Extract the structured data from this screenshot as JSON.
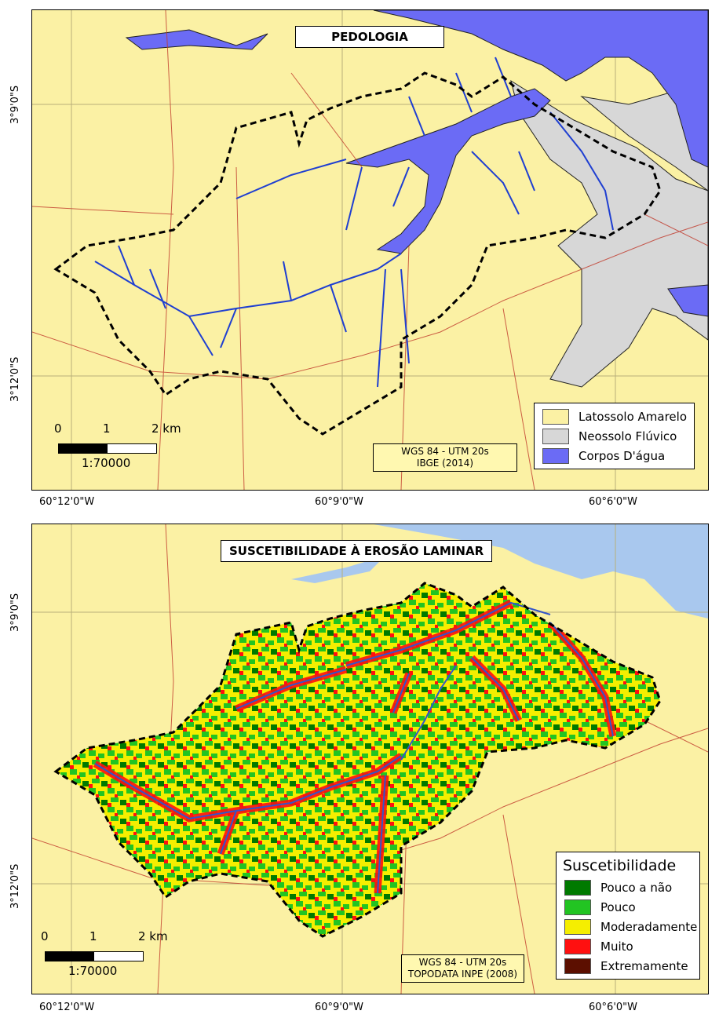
{
  "maps": [
    {
      "title": "PEDOLOGIA",
      "credit_line1": "WGS 84 - UTM 20s",
      "credit_line2": "IBGE (2014)",
      "scale": {
        "labels": [
          "0",
          "1",
          "2 km"
        ],
        "ratio": "1:70000"
      },
      "legend": {
        "title": "",
        "items": [
          {
            "label": "Latossolo Amarelo",
            "color": "#fbf1a4"
          },
          {
            "label": "Neossolo Flúvico",
            "color": "#d7d7d7"
          },
          {
            "label": "Corpos D'água",
            "color": "#6b6bf5"
          }
        ]
      },
      "lat_labels": [
        "3°9'0\"S",
        "3°12'0\"S"
      ],
      "lon_labels": [
        "60°12'0\"W",
        "60°9'0\"W",
        "60°6'0\"W"
      ]
    },
    {
      "title": "SUSCETIBILIDADE À EROSÃO LAMINAR",
      "credit_line1": "WGS 84 - UTM 20s",
      "credit_line2": "TOPODATA INPE (2008)",
      "scale": {
        "labels": [
          "0",
          "1",
          "2 km"
        ],
        "ratio": "1:70000"
      },
      "legend": {
        "title": "Suscetibilidade",
        "items": [
          {
            "label": "Pouco a não",
            "color": "#007a00"
          },
          {
            "label": "Pouco",
            "color": "#22c422"
          },
          {
            "label": "Moderadamente",
            "color": "#f5ee00"
          },
          {
            "label": "Muito",
            "color": "#ff1010"
          },
          {
            "label": "Extremamente",
            "color": "#5c0f00"
          }
        ]
      },
      "lat_labels": [
        "3°9'0\"S",
        "3°12'0\"S"
      ],
      "lon_labels": [
        "60°12'0\"W",
        "60°9'0\"W",
        "60°6'0\"W"
      ]
    }
  ],
  "colors": {
    "background_soil": "#fbf1a4",
    "water_top": "#6b6bf5",
    "water_bottom": "#a9c8ee",
    "neossolo": "#d7d7d7",
    "roads": "#c0392b",
    "rivers": "#1f3fd1"
  }
}
